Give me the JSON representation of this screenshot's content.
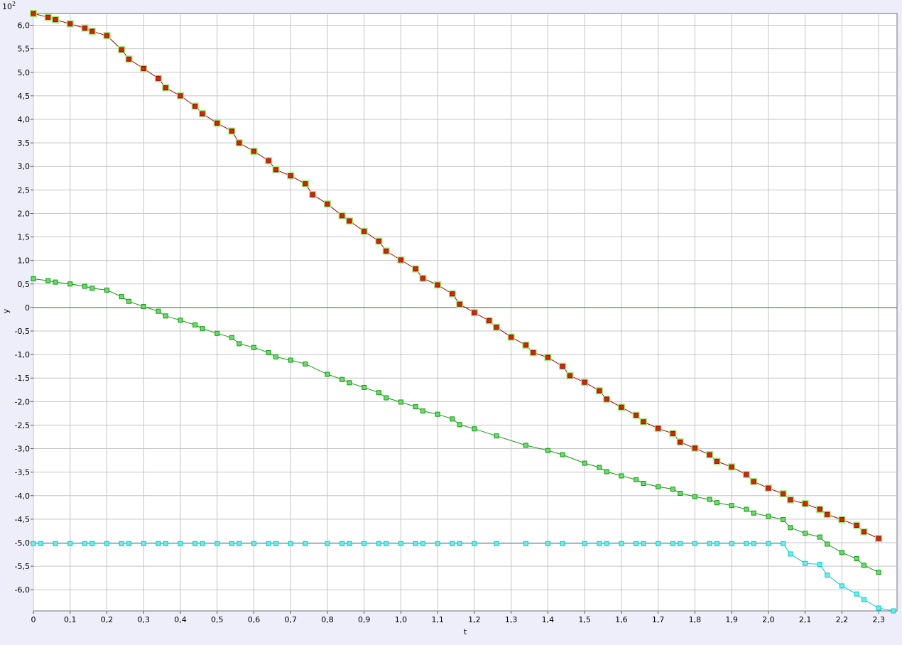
{
  "chart_data": {
    "type": "line",
    "xlabel": "t",
    "ylabel": "y",
    "multiplier_label": "10",
    "multiplier_exponent": "2",
    "xlim": [
      0,
      2.35
    ],
    "ylim": [
      -6.45,
      6.25
    ],
    "x_ticks": [
      0,
      0.1,
      0.2,
      0.3,
      0.4,
      0.5,
      0.6,
      0.7,
      0.8,
      0.9,
      1.0,
      1.1,
      1.2,
      1.3,
      1.4,
      1.5,
      1.6,
      1.7,
      1.8,
      1.9,
      2.0,
      2.1,
      2.2,
      2.3
    ],
    "x_tick_labels": [
      "0",
      "0,1",
      "0,2",
      "0,3",
      "0,4",
      "0,5",
      "0,6",
      "0,7",
      "0,8",
      "0,9",
      "1,0",
      "1,1",
      "1,2",
      "1,3",
      "1,4",
      "1,5",
      "1,6",
      "1,7",
      "1,8",
      "1,9",
      "2,0",
      "2,1",
      "2,2",
      "2,3"
    ],
    "y_ticks": [
      6.0,
      5.5,
      5.0,
      4.5,
      4.0,
      3.5,
      3.0,
      2.5,
      2.0,
      1.5,
      1.0,
      0.5,
      0,
      -0.5,
      -1.0,
      -1.5,
      -2.0,
      -2.5,
      -3.0,
      -3.5,
      -4.0,
      -4.5,
      -5.0,
      -5.5,
      -6.0
    ],
    "y_tick_labels": [
      "6,0",
      "5,5",
      "5,0",
      "4,5",
      "4,0",
      "3,5",
      "3,0",
      "2,5",
      "2,0",
      "1,5",
      "1,0",
      "0,5",
      "0",
      "-0,5",
      "-1,0",
      "-1,5",
      "-2,0",
      "-2,5",
      "-3,0",
      "-3,5",
      "-4,0",
      "-4,5",
      "-5,0",
      "-5,5",
      "-6,0"
    ],
    "grid": true,
    "zero_line": true,
    "series": [
      {
        "color": "#aa0000",
        "marker_fill": "#dd2200",
        "marker_halo": "#99ee77",
        "points": [
          [
            0,
            6.25
          ],
          [
            0.04,
            6.17
          ],
          [
            0.06,
            6.12
          ],
          [
            0.1,
            6.03
          ],
          [
            0.14,
            5.94
          ],
          [
            0.16,
            5.87
          ],
          [
            0.2,
            5.78
          ],
          [
            0.24,
            5.48
          ],
          [
            0.26,
            5.28
          ],
          [
            0.3,
            5.08
          ],
          [
            0.34,
            4.87
          ],
          [
            0.36,
            4.67
          ],
          [
            0.4,
            4.5
          ],
          [
            0.44,
            4.28
          ],
          [
            0.46,
            4.12
          ],
          [
            0.5,
            3.92
          ],
          [
            0.54,
            3.75
          ],
          [
            0.56,
            3.5
          ],
          [
            0.6,
            3.32
          ],
          [
            0.64,
            3.12
          ],
          [
            0.66,
            2.93
          ],
          [
            0.7,
            2.8
          ],
          [
            0.74,
            2.63
          ],
          [
            0.76,
            2.4
          ],
          [
            0.8,
            2.2
          ],
          [
            0.84,
            1.95
          ],
          [
            0.86,
            1.84
          ],
          [
            0.9,
            1.62
          ],
          [
            0.94,
            1.41
          ],
          [
            0.96,
            1.2
          ],
          [
            1.0,
            1.01
          ],
          [
            1.04,
            0.82
          ],
          [
            1.06,
            0.62
          ],
          [
            1.1,
            0.48
          ],
          [
            1.14,
            0.29
          ],
          [
            1.16,
            0.07
          ],
          [
            1.2,
            -0.11
          ],
          [
            1.24,
            -0.28
          ],
          [
            1.26,
            -0.42
          ],
          [
            1.3,
            -0.63
          ],
          [
            1.34,
            -0.8
          ],
          [
            1.36,
            -0.96
          ],
          [
            1.4,
            -1.06
          ],
          [
            1.44,
            -1.25
          ],
          [
            1.46,
            -1.45
          ],
          [
            1.5,
            -1.59
          ],
          [
            1.54,
            -1.77
          ],
          [
            1.56,
            -1.95
          ],
          [
            1.6,
            -2.12
          ],
          [
            1.64,
            -2.29
          ],
          [
            1.66,
            -2.43
          ],
          [
            1.7,
            -2.57
          ],
          [
            1.74,
            -2.68
          ],
          [
            1.76,
            -2.86
          ],
          [
            1.8,
            -2.99
          ],
          [
            1.84,
            -3.13
          ],
          [
            1.86,
            -3.27
          ],
          [
            1.9,
            -3.39
          ],
          [
            1.94,
            -3.55
          ],
          [
            1.96,
            -3.7
          ],
          [
            2.0,
            -3.84
          ],
          [
            2.04,
            -3.96
          ],
          [
            2.06,
            -4.09
          ],
          [
            2.1,
            -4.17
          ],
          [
            2.14,
            -4.29
          ],
          [
            2.16,
            -4.4
          ],
          [
            2.2,
            -4.51
          ],
          [
            2.24,
            -4.63
          ],
          [
            2.26,
            -4.77
          ],
          [
            2.3,
            -4.91
          ]
        ]
      },
      {
        "color": "#119911",
        "marker_fill": "#66dd66",
        "points": [
          [
            0,
            0.61
          ],
          [
            0.04,
            0.57
          ],
          [
            0.06,
            0.54
          ],
          [
            0.1,
            0.5
          ],
          [
            0.14,
            0.45
          ],
          [
            0.16,
            0.41
          ],
          [
            0.2,
            0.37
          ],
          [
            0.24,
            0.23
          ],
          [
            0.26,
            0.13
          ],
          [
            0.3,
            0.02
          ],
          [
            0.34,
            -0.08
          ],
          [
            0.36,
            -0.18
          ],
          [
            0.4,
            -0.27
          ],
          [
            0.44,
            -0.37
          ],
          [
            0.46,
            -0.45
          ],
          [
            0.5,
            -0.55
          ],
          [
            0.54,
            -0.64
          ],
          [
            0.56,
            -0.77
          ],
          [
            0.6,
            -0.85
          ],
          [
            0.64,
            -0.96
          ],
          [
            0.66,
            -1.05
          ],
          [
            0.7,
            -1.12
          ],
          [
            0.74,
            -1.2
          ],
          [
            0.8,
            -1.42
          ],
          [
            0.84,
            -1.53
          ],
          [
            0.86,
            -1.6
          ],
          [
            0.9,
            -1.7
          ],
          [
            0.94,
            -1.81
          ],
          [
            0.96,
            -1.92
          ],
          [
            1.0,
            -2.01
          ],
          [
            1.04,
            -2.11
          ],
          [
            1.06,
            -2.2
          ],
          [
            1.1,
            -2.27
          ],
          [
            1.14,
            -2.37
          ],
          [
            1.16,
            -2.49
          ],
          [
            1.2,
            -2.58
          ],
          [
            1.26,
            -2.73
          ],
          [
            1.34,
            -2.93
          ],
          [
            1.4,
            -3.04
          ],
          [
            1.44,
            -3.13
          ],
          [
            1.5,
            -3.31
          ],
          [
            1.54,
            -3.4
          ],
          [
            1.56,
            -3.49
          ],
          [
            1.6,
            -3.58
          ],
          [
            1.64,
            -3.66
          ],
          [
            1.66,
            -3.74
          ],
          [
            1.7,
            -3.81
          ],
          [
            1.74,
            -3.86
          ],
          [
            1.76,
            -3.95
          ],
          [
            1.8,
            -4.02
          ],
          [
            1.84,
            -4.08
          ],
          [
            1.86,
            -4.15
          ],
          [
            1.9,
            -4.21
          ],
          [
            1.94,
            -4.29
          ],
          [
            1.96,
            -4.37
          ],
          [
            2.0,
            -4.44
          ],
          [
            2.04,
            -4.51
          ],
          [
            2.06,
            -4.68
          ],
          [
            2.1,
            -4.8
          ],
          [
            2.14,
            -4.88
          ],
          [
            2.16,
            -5.03
          ],
          [
            2.2,
            -5.21
          ],
          [
            2.24,
            -5.34
          ],
          [
            2.26,
            -5.48
          ],
          [
            2.3,
            -5.63
          ]
        ]
      },
      {
        "color": "#00cccc",
        "marker_fill": "#66eeee",
        "points": [
          [
            0,
            -5.02
          ],
          [
            0.02,
            -5.02
          ],
          [
            0.06,
            -5.02
          ],
          [
            0.1,
            -5.02
          ],
          [
            0.14,
            -5.02
          ],
          [
            0.16,
            -5.02
          ],
          [
            0.2,
            -5.02
          ],
          [
            0.24,
            -5.02
          ],
          [
            0.26,
            -5.02
          ],
          [
            0.3,
            -5.02
          ],
          [
            0.34,
            -5.02
          ],
          [
            0.36,
            -5.02
          ],
          [
            0.4,
            -5.02
          ],
          [
            0.44,
            -5.02
          ],
          [
            0.46,
            -5.02
          ],
          [
            0.5,
            -5.02
          ],
          [
            0.54,
            -5.02
          ],
          [
            0.56,
            -5.02
          ],
          [
            0.6,
            -5.02
          ],
          [
            0.64,
            -5.02
          ],
          [
            0.66,
            -5.02
          ],
          [
            0.7,
            -5.02
          ],
          [
            0.74,
            -5.02
          ],
          [
            0.8,
            -5.02
          ],
          [
            0.84,
            -5.02
          ],
          [
            0.86,
            -5.02
          ],
          [
            0.9,
            -5.02
          ],
          [
            0.94,
            -5.02
          ],
          [
            0.96,
            -5.02
          ],
          [
            1.0,
            -5.02
          ],
          [
            1.04,
            -5.02
          ],
          [
            1.06,
            -5.02
          ],
          [
            1.1,
            -5.02
          ],
          [
            1.14,
            -5.02
          ],
          [
            1.16,
            -5.02
          ],
          [
            1.2,
            -5.02
          ],
          [
            1.26,
            -5.02
          ],
          [
            1.34,
            -5.02
          ],
          [
            1.4,
            -5.02
          ],
          [
            1.44,
            -5.02
          ],
          [
            1.5,
            -5.02
          ],
          [
            1.54,
            -5.02
          ],
          [
            1.56,
            -5.02
          ],
          [
            1.6,
            -5.02
          ],
          [
            1.64,
            -5.02
          ],
          [
            1.66,
            -5.02
          ],
          [
            1.7,
            -5.02
          ],
          [
            1.74,
            -5.02
          ],
          [
            1.76,
            -5.02
          ],
          [
            1.8,
            -5.02
          ],
          [
            1.84,
            -5.02
          ],
          [
            1.86,
            -5.02
          ],
          [
            1.9,
            -5.02
          ],
          [
            1.94,
            -5.02
          ],
          [
            1.96,
            -5.02
          ],
          [
            2.0,
            -5.02
          ],
          [
            2.04,
            -5.02
          ],
          [
            2.06,
            -5.24
          ],
          [
            2.1,
            -5.44
          ],
          [
            2.14,
            -5.46
          ],
          [
            2.16,
            -5.69
          ],
          [
            2.2,
            -5.92
          ],
          [
            2.24,
            -6.09
          ],
          [
            2.26,
            -6.21
          ],
          [
            2.3,
            -6.39
          ],
          [
            2.34,
            -6.45
          ]
        ]
      }
    ]
  }
}
